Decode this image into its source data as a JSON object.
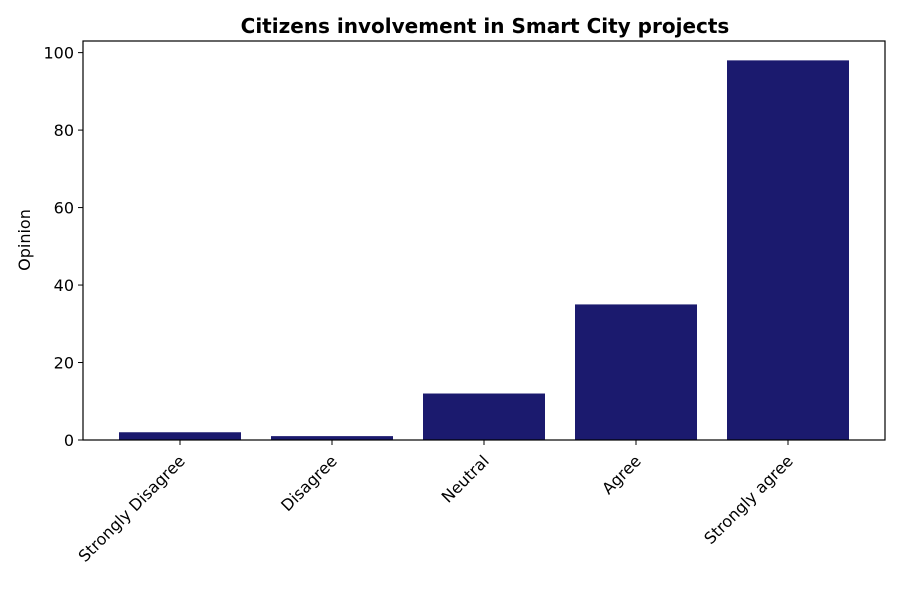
{
  "chart_data": {
    "type": "bar",
    "title": "Citizens involvement in Smart City projects",
    "xlabel": "",
    "ylabel": "Opinion",
    "categories": [
      "Strongly Disagree",
      "Disagree",
      "Neutral",
      "Agree",
      "Strongly agree"
    ],
    "values": [
      2,
      1,
      12,
      35,
      98
    ],
    "ylim": [
      0,
      103
    ],
    "yticks": [
      0,
      20,
      40,
      60,
      80,
      100
    ],
    "bar_color": "#1b1a6e",
    "grid": false,
    "legend": "none"
  }
}
